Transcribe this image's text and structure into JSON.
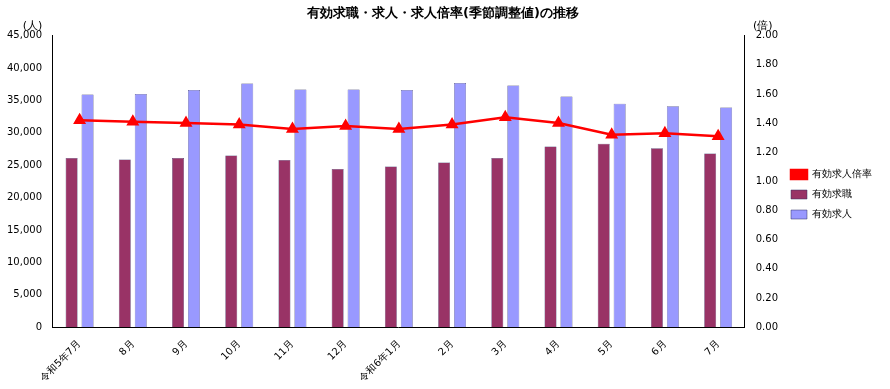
{
  "chart_data": {
    "type": "bar",
    "title": "有効求職・求人・求人倍率(季節調整値)の推移",
    "ylabel": "(人)",
    "y2label": "(倍)",
    "categories": [
      "令和5年7月",
      "8月",
      "9月",
      "10月",
      "11月",
      "12月",
      "令和6年1月",
      "2月",
      "3月",
      "4月",
      "5月",
      "6月",
      "7月"
    ],
    "series": [
      {
        "name": "有効求職",
        "type": "bar",
        "color": "#993366",
        "values": [
          26100,
          25900,
          26100,
          26500,
          25800,
          24400,
          24800,
          25400,
          26100,
          27900,
          28300,
          27600,
          26800
        ]
      },
      {
        "name": "有効求人",
        "type": "bar",
        "color": "#9999ff",
        "values": [
          35900,
          36000,
          36600,
          37600,
          36700,
          36700,
          36600,
          37700,
          37300,
          35600,
          34500,
          34100,
          33900
        ]
      },
      {
        "name": "有効求人倍率",
        "type": "line",
        "color": "#ff0000",
        "marker": "triangle",
        "axis": "y2",
        "values": [
          1.42,
          1.41,
          1.4,
          1.39,
          1.36,
          1.38,
          1.36,
          1.39,
          1.44,
          1.4,
          1.32,
          1.33,
          1.31
        ]
      }
    ],
    "ylim": [
      0,
      45000
    ],
    "yticks": [
      0,
      {
        "value": 5000,
        "label": "5,000"
      },
      {
        "value": 10000,
        "label": "10,000"
      },
      {
        "value": 15000,
        "label": "15,000"
      },
      {
        "value": 20000,
        "label": "20,000"
      },
      {
        "value": 25000,
        "label": "25,000"
      },
      {
        "value": 30000,
        "label": "30,000"
      },
      {
        "value": 35000,
        "label": "35,000"
      },
      {
        "value": 40000,
        "label": "40,000"
      },
      {
        "value": 45000,
        "label": "45,000"
      }
    ],
    "y2lim": [
      0,
      2
    ],
    "y2ticks": [
      {
        "value": 0,
        "label": "0.00"
      },
      {
        "value": 0.2,
        "label": "0.20"
      },
      {
        "value": 0.4,
        "label": "0.40"
      },
      {
        "value": 0.6,
        "label": "0.60"
      },
      {
        "value": 0.8,
        "label": "0.80"
      },
      {
        "value": 1,
        "label": "1.00"
      },
      {
        "value": 1.2,
        "label": "1.20"
      },
      {
        "value": 1.4,
        "label": "1.40"
      },
      {
        "value": 1.6,
        "label": "1.60"
      },
      {
        "value": 1.8,
        "label": "1.80"
      },
      {
        "value": 2,
        "label": "2.00"
      }
    ],
    "grid": false,
    "legend": "right"
  }
}
